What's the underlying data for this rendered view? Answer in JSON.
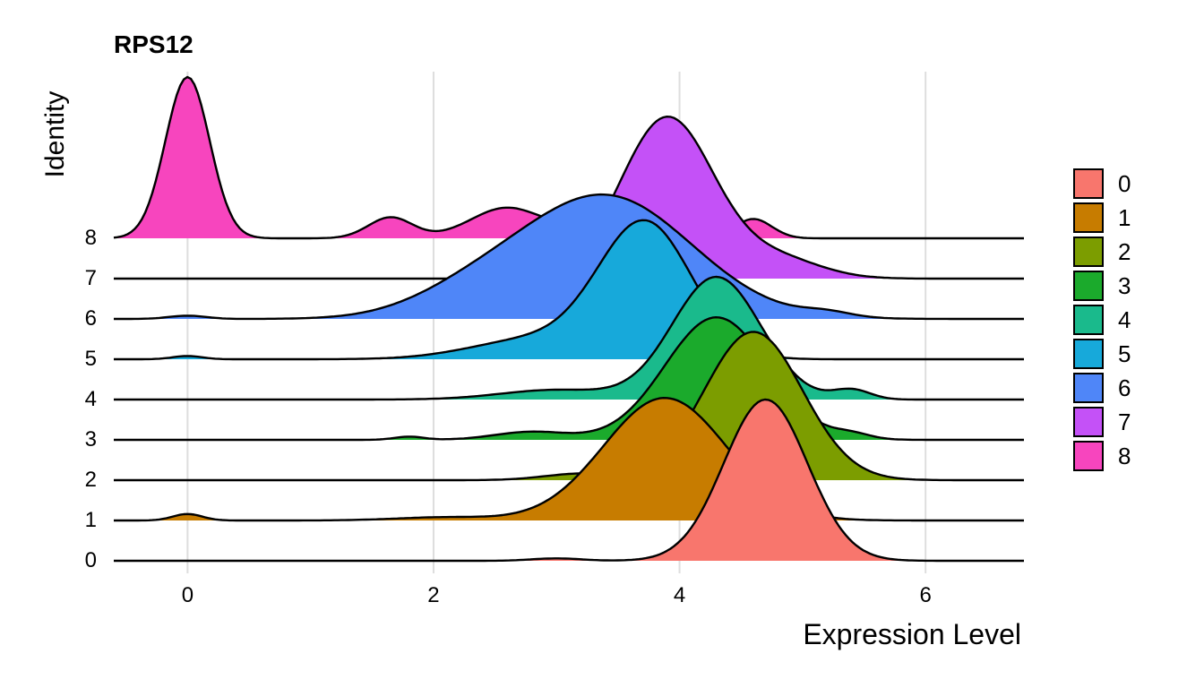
{
  "chart_data": {
    "type": "ridgeline",
    "title": "RPS12",
    "xlabel": "Expression Level",
    "ylabel": "Identity",
    "xlim": [
      -0.6,
      6.8
    ],
    "x_ticks": [
      "0",
      "2",
      "4",
      "6"
    ],
    "grid": true,
    "legend_position": "right",
    "series": [
      {
        "name": "0",
        "color": "#F8766D",
        "peaks": [
          [
            4.7,
            0.34,
            1.0
          ],
          [
            3.0,
            0.2,
            0.015
          ]
        ]
      },
      {
        "name": "1",
        "color": "#C77C00",
        "peaks": [
          [
            3.88,
            0.5,
            0.76
          ],
          [
            0.0,
            0.12,
            0.04
          ],
          [
            2.1,
            0.4,
            0.02
          ]
        ]
      },
      {
        "name": "2",
        "color": "#7C9D00",
        "peaks": [
          [
            4.6,
            0.4,
            0.92
          ],
          [
            3.2,
            0.3,
            0.04
          ]
        ]
      },
      {
        "name": "3",
        "color": "#1BAA2C",
        "peaks": [
          [
            4.3,
            0.42,
            0.76
          ],
          [
            1.8,
            0.12,
            0.02
          ],
          [
            2.8,
            0.3,
            0.05
          ],
          [
            5.4,
            0.15,
            0.03
          ]
        ]
      },
      {
        "name": "4",
        "color": "#1ABA8C",
        "peaks": [
          [
            4.3,
            0.36,
            0.76
          ],
          [
            3.0,
            0.45,
            0.06
          ],
          [
            5.4,
            0.15,
            0.06
          ]
        ]
      },
      {
        "name": "5",
        "color": "#17A9DA",
        "peaks": [
          [
            3.72,
            0.38,
            0.84
          ],
          [
            0.0,
            0.12,
            0.02
          ],
          [
            2.8,
            0.5,
            0.12
          ]
        ]
      },
      {
        "name": "6",
        "color": "#4F86F8",
        "peaks": [
          [
            3.4,
            0.7,
            0.76
          ],
          [
            0.0,
            0.15,
            0.02
          ],
          [
            2.3,
            0.5,
            0.12
          ],
          [
            5.2,
            0.2,
            0.03
          ]
        ]
      },
      {
        "name": "7",
        "color": "#C451F7",
        "peaks": [
          [
            3.9,
            0.38,
            1.0
          ],
          [
            4.8,
            0.35,
            0.12
          ]
        ]
      },
      {
        "name": "8",
        "color": "#F745BE",
        "peaks": [
          [
            0.0,
            0.18,
            1.0
          ],
          [
            1.65,
            0.18,
            0.13
          ],
          [
            2.6,
            0.3,
            0.19
          ],
          [
            3.3,
            0.2,
            0.12
          ],
          [
            4.6,
            0.15,
            0.12
          ]
        ]
      }
    ]
  }
}
